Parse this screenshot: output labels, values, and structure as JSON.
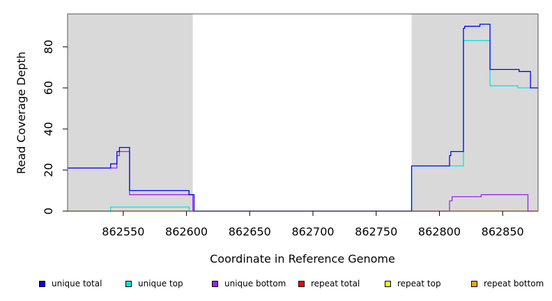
{
  "chart_data": {
    "type": "line",
    "xlabel": "Coordinate in Reference Genome",
    "ylabel": "Read Coverage Depth",
    "xlim": [
      862506,
      862878
    ],
    "ylim": [
      0,
      96
    ],
    "x_ticks": [
      862550,
      862600,
      862650,
      862700,
      862750,
      862800,
      862850
    ],
    "y_ticks": [
      0,
      20,
      40,
      60,
      80
    ],
    "shaded_regions": [
      [
        862506,
        862605
      ],
      [
        862778,
        862878
      ]
    ],
    "shade_color": "#d9d9d9",
    "series": [
      {
        "name": "unique total",
        "color": "#0000ff",
        "points": [
          [
            862506,
            21
          ],
          [
            862540,
            21
          ],
          [
            862540,
            23
          ],
          [
            862545,
            23
          ],
          [
            862545,
            29
          ],
          [
            862547,
            29
          ],
          [
            862547,
            31
          ],
          [
            862555,
            31
          ],
          [
            862555,
            10
          ],
          [
            862602,
            10
          ],
          [
            862602,
            8
          ],
          [
            862606,
            8
          ],
          [
            862606,
            0
          ],
          [
            862778,
            0
          ],
          [
            862778,
            22
          ],
          [
            862808,
            22
          ],
          [
            862808,
            27
          ],
          [
            862809,
            27
          ],
          [
            862809,
            29
          ],
          [
            862819,
            29
          ],
          [
            862819,
            89
          ],
          [
            862820,
            89
          ],
          [
            862820,
            90
          ],
          [
            862832,
            90
          ],
          [
            862832,
            91
          ],
          [
            862840,
            91
          ],
          [
            862840,
            69
          ],
          [
            862863,
            69
          ],
          [
            862863,
            68
          ],
          [
            862872,
            68
          ],
          [
            862872,
            60
          ],
          [
            862878,
            60
          ]
        ]
      },
      {
        "name": "unique top",
        "color": "#00e5e5",
        "points": [
          [
            862506,
            0
          ],
          [
            862540,
            0
          ],
          [
            862540,
            2
          ],
          [
            862602,
            2
          ],
          [
            862602,
            0
          ],
          [
            862778,
            0
          ],
          [
            862778,
            22
          ],
          [
            862819,
            22
          ],
          [
            862819,
            83
          ],
          [
            862840,
            83
          ],
          [
            862840,
            61
          ],
          [
            862862,
            61
          ],
          [
            862862,
            60
          ],
          [
            862878,
            60
          ]
        ]
      },
      {
        "name": "unique bottom",
        "color": "#a020f0",
        "points": [
          [
            862506,
            21
          ],
          [
            862540,
            21
          ],
          [
            862540,
            21
          ],
          [
            862545,
            21
          ],
          [
            862545,
            27
          ],
          [
            862547,
            27
          ],
          [
            862547,
            29
          ],
          [
            862555,
            29
          ],
          [
            862555,
            8
          ],
          [
            862605,
            8
          ],
          [
            862605,
            0
          ],
          [
            862808,
            0
          ],
          [
            862808,
            5
          ],
          [
            862810,
            5
          ],
          [
            862810,
            7
          ],
          [
            862833,
            7
          ],
          [
            862833,
            8
          ],
          [
            862870,
            8
          ],
          [
            862870,
            0
          ],
          [
            862878,
            0
          ]
        ]
      },
      {
        "name": "repeat total",
        "color": "#ff0000",
        "points": [
          [
            862506,
            0
          ],
          [
            862878,
            0
          ]
        ]
      },
      {
        "name": "repeat top",
        "color": "#ffff00",
        "points": [
          [
            862506,
            0
          ],
          [
            862878,
            0
          ]
        ]
      },
      {
        "name": "repeat bottom",
        "color": "#ffa500",
        "points": [
          [
            862506,
            0
          ],
          [
            862878,
            0
          ]
        ]
      }
    ]
  }
}
